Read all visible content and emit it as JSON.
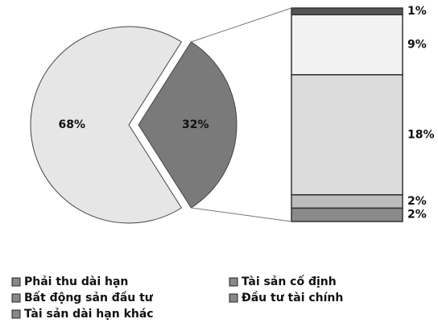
{
  "chart_data": {
    "type": "pie-of-bar",
    "pie": {
      "values": [
        68,
        32
      ],
      "value_labels": [
        "68%",
        "32%"
      ],
      "colors": [
        "#e6e6e6",
        "#7a7a7a"
      ]
    },
    "bar": {
      "values": [
        1,
        9,
        18,
        2,
        2
      ],
      "value_labels": [
        "1%",
        "9%",
        "18%",
        "2%",
        "2%"
      ],
      "colors": [
        "#555555",
        "#f2f2f2",
        "#dcdcdc",
        "#bdbdbd",
        "#8a8a8a"
      ]
    },
    "legend": [
      "Phải thu dài hạn",
      "Tài sản cố định",
      "Bất động sản đầu tư",
      "Đầu tư tài chính",
      "Tài sản dài hạn khác"
    ]
  }
}
